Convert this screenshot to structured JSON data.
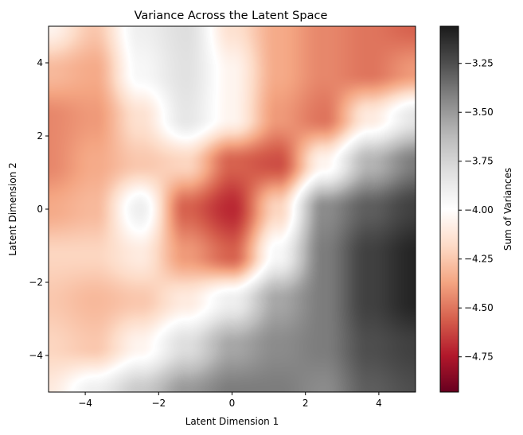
{
  "chart_data": {
    "type": "heatmap",
    "title": "Variance Across the Latent Space",
    "xlabel": "Latent Dimension 1",
    "ylabel": "Latent Dimension 2",
    "xlim": [
      -5,
      5
    ],
    "ylim": [
      -5,
      5
    ],
    "x_ticks": [
      -4,
      -2,
      0,
      2,
      4
    ],
    "y_ticks": [
      -4,
      -2,
      0,
      2,
      4
    ],
    "x_tick_labels": [
      "−4",
      "−2",
      "0",
      "2",
      "4"
    ],
    "y_tick_labels": [
      "−4",
      "−2",
      "0",
      "2",
      "4"
    ],
    "grid": false,
    "colormap": "RdGy",
    "colorbar": {
      "label": "Sum of Variances",
      "range": [
        -4.93,
        -3.06
      ],
      "ticks": [
        -3.25,
        -3.5,
        -3.75,
        -4.0,
        -4.25,
        -4.5,
        -4.75
      ],
      "tick_labels": [
        "−3.25",
        "−3.50",
        "−3.75",
        "−4.00",
        "−4.25",
        "−4.50",
        "−4.75"
      ],
      "placement": "right"
    },
    "grid_x": [
      -5,
      -3.75,
      -2.5,
      -1.25,
      0,
      1.25,
      2.5,
      3.75,
      5
    ],
    "grid_y": [
      5,
      3.75,
      2.5,
      1.25,
      0,
      -1.25,
      -2.5,
      -3.75,
      -5
    ],
    "z": [
      [
        -4.05,
        -4.25,
        -3.9,
        -3.8,
        -4.15,
        -4.35,
        -4.45,
        -4.5,
        -4.55
      ],
      [
        -4.3,
        -4.35,
        -3.95,
        -3.82,
        -4.05,
        -4.35,
        -4.45,
        -4.5,
        -4.4
      ],
      [
        -4.45,
        -4.4,
        -4.15,
        -3.85,
        -4.05,
        -4.4,
        -4.5,
        -4.1,
        -3.85
      ],
      [
        -4.45,
        -4.35,
        -4.25,
        -4.2,
        -4.55,
        -4.6,
        -4.05,
        -3.6,
        -3.4
      ],
      [
        -4.35,
        -4.3,
        -3.9,
        -4.55,
        -4.7,
        -4.2,
        -3.45,
        -3.3,
        -3.2
      ],
      [
        -4.2,
        -4.2,
        -4.1,
        -4.4,
        -4.55,
        -3.95,
        -3.4,
        -3.2,
        -3.1
      ],
      [
        -4.25,
        -4.3,
        -4.25,
        -4.1,
        -3.9,
        -3.55,
        -3.4,
        -3.2,
        -3.1
      ],
      [
        -4.2,
        -4.25,
        -4.05,
        -3.8,
        -3.55,
        -3.45,
        -3.4,
        -3.25,
        -3.2
      ],
      [
        -4.1,
        -3.9,
        -3.7,
        -3.5,
        -3.4,
        -3.4,
        -3.45,
        -3.3,
        -3.25
      ]
    ]
  }
}
